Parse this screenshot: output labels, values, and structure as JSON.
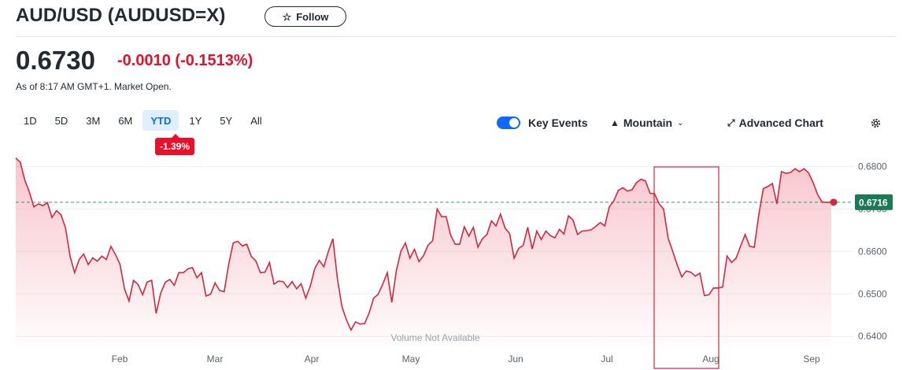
{
  "header": {
    "title": "AUD/USD (AUDUSD=X)",
    "follow_label": "Follow",
    "price": "0.6730",
    "change": "-0.0010",
    "change_pct": "(-0.1513%)",
    "as_of": "As of 8:17 AM GMT+1. Market Open.",
    "change_color": "#eb0f29"
  },
  "range_tabs": [
    {
      "label": "1D"
    },
    {
      "label": "5D"
    },
    {
      "label": "3M"
    },
    {
      "label": "6M"
    },
    {
      "label": "YTD",
      "active": true
    },
    {
      "label": "1Y"
    },
    {
      "label": "5Y"
    },
    {
      "label": "All"
    }
  ],
  "ytd_badge": "-1.39%",
  "toolbar": {
    "key_events_label": "Key Events",
    "key_events_on": true,
    "chart_type_label": "Mountain",
    "advanced_chart_label": "Advanced Chart",
    "icons": [
      "toggle-switch",
      "mountain-icon",
      "chevron-down-icon",
      "expand-arrows-icon",
      "gear-icon"
    ]
  },
  "chart_data": {
    "type": "area",
    "x_ticks": [
      "Feb",
      "Mar",
      "Apr",
      "May",
      "Jun",
      "Jul",
      "Aug",
      "Sep"
    ],
    "y_ticks": [
      "0.6800",
      "0.6700",
      "0.6600",
      "0.6500",
      "0.6400"
    ],
    "ylim": [
      0.638,
      0.684
    ],
    "reference_value": 0.6716,
    "reference_label": "0.6716",
    "volume_note": "Volume Not Available",
    "line_color": "#d7263d",
    "reference_color": "#1b7a56",
    "values": [
      0.682,
      0.681,
      0.6768,
      0.674,
      0.6705,
      0.6712,
      0.6708,
      0.6715,
      0.668,
      0.6696,
      0.6686,
      0.6655,
      0.6588,
      0.655,
      0.6581,
      0.6594,
      0.6569,
      0.6585,
      0.6577,
      0.6589,
      0.6581,
      0.6612,
      0.6593,
      0.657,
      0.6512,
      0.6483,
      0.6532,
      0.6522,
      0.6498,
      0.6528,
      0.6532,
      0.6454,
      0.6502,
      0.6527,
      0.6534,
      0.652,
      0.655,
      0.655,
      0.6559,
      0.6562,
      0.6538,
      0.655,
      0.6495,
      0.6499,
      0.6526,
      0.6508,
      0.6505,
      0.657,
      0.662,
      0.6624,
      0.6613,
      0.6617,
      0.6588,
      0.6578,
      0.655,
      0.6551,
      0.6574,
      0.6523,
      0.653,
      0.6529,
      0.6515,
      0.6529,
      0.6512,
      0.6524,
      0.649,
      0.6518,
      0.656,
      0.6579,
      0.6564,
      0.66,
      0.663,
      0.6536,
      0.647,
      0.6438,
      0.6415,
      0.6434,
      0.6429,
      0.643,
      0.6455,
      0.649,
      0.6499,
      0.6523,
      0.655,
      0.648,
      0.6555,
      0.66,
      0.662,
      0.6584,
      0.6605,
      0.6576,
      0.659,
      0.6615,
      0.6625,
      0.67,
      0.6682,
      0.6682,
      0.6638,
      0.6617,
      0.6617,
      0.6658,
      0.6636,
      0.6657,
      0.661,
      0.663,
      0.664,
      0.6672,
      0.666,
      0.6688,
      0.6655,
      0.6642,
      0.6584,
      0.6607,
      0.6614,
      0.6657,
      0.6606,
      0.6648,
      0.6628,
      0.6648,
      0.6637,
      0.6632,
      0.6652,
      0.6641,
      0.6684,
      0.6674,
      0.664,
      0.6648,
      0.6649,
      0.6651,
      0.6659,
      0.6668,
      0.666,
      0.6705,
      0.6719,
      0.6744,
      0.675,
      0.6742,
      0.6745,
      0.6762,
      0.677,
      0.6766,
      0.6737,
      0.6736,
      0.6712,
      0.67,
      0.6631,
      0.66,
      0.6568,
      0.654,
      0.6554,
      0.6551,
      0.6542,
      0.6549,
      0.6496,
      0.6498,
      0.6514,
      0.6514,
      0.6516,
      0.6589,
      0.6574,
      0.6584,
      0.6613,
      0.664,
      0.6612,
      0.661,
      0.6686,
      0.6748,
      0.6753,
      0.676,
      0.6712,
      0.6788,
      0.6784,
      0.6786,
      0.6795,
      0.6788,
      0.6795,
      0.6785,
      0.6762,
      0.6734,
      0.6716,
      0.6716,
      0.6716
    ]
  }
}
